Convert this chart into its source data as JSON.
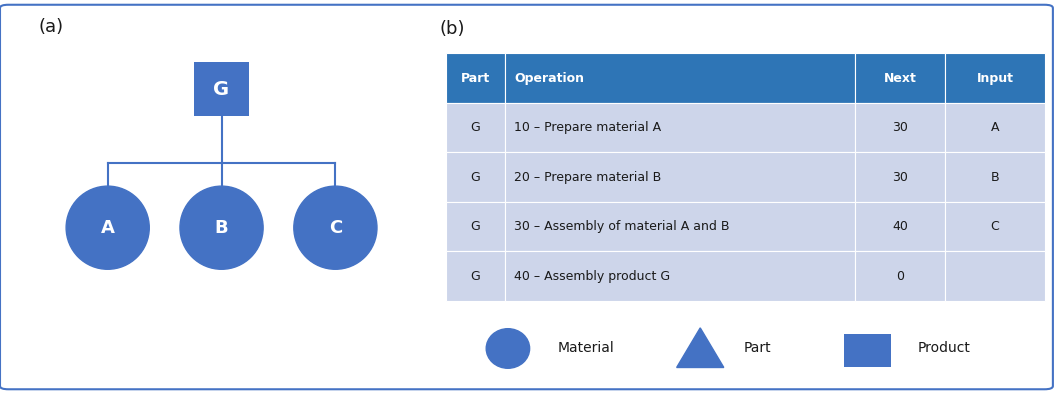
{
  "fig_width": 10.55,
  "fig_height": 3.96,
  "dpi": 100,
  "bg_color": "#ffffff",
  "border_color": "#4472c4",
  "node_color": "#4472c4",
  "header_color": "#2e75b6",
  "row_color": "#cdd5ea",
  "text_color_white": "#ffffff",
  "text_color_dark": "#1a1a1a",
  "label_a": "(a)",
  "label_b": "(b)",
  "table_headers": [
    "Part",
    "Operation",
    "Next",
    "Input"
  ],
  "table_rows": [
    [
      "G",
      "10 – Prepare material A",
      "30",
      "A"
    ],
    [
      "G",
      "20 – Prepare material B",
      "30",
      "B"
    ],
    [
      "G",
      "30 – Assembly of material A and B",
      "40",
      "C"
    ],
    [
      "G",
      "40 – Assembly product G",
      "0",
      ""
    ]
  ],
  "legend_items": [
    {
      "label": "Material",
      "shape": "ellipse",
      "color": "#4472c4"
    },
    {
      "label": "Part",
      "shape": "triangle",
      "color": "#4472c4"
    },
    {
      "label": "Product",
      "shape": "square",
      "color": "#4472c4"
    }
  ]
}
